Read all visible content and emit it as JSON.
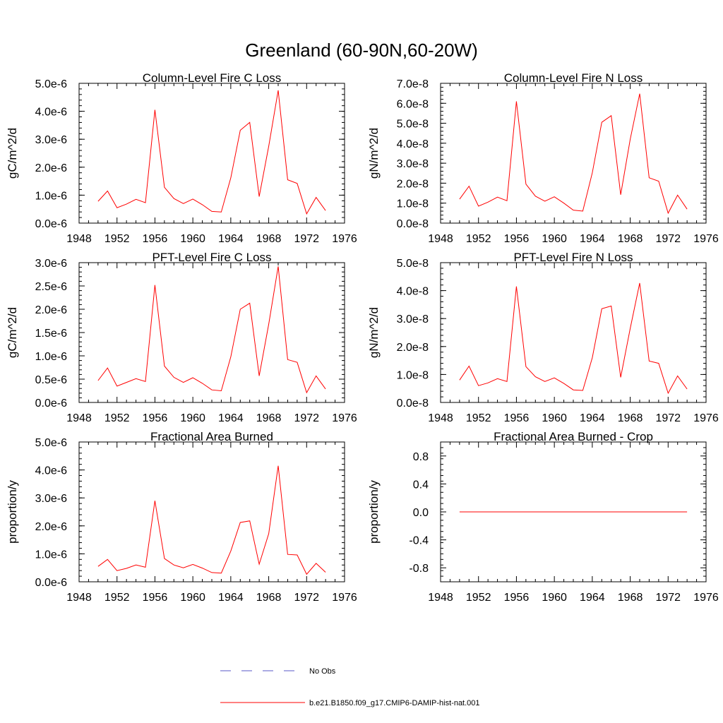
{
  "figure": {
    "title": "Greenland (60-90N,60-20W)",
    "colors": {
      "series": "#ff0000",
      "no_obs": "#5a5ac8",
      "axis": "#000000"
    }
  },
  "legend": {
    "position": "bottom-center",
    "entries": [
      {
        "label": "No Obs",
        "style": "dashed",
        "color": "#5a5ac8"
      },
      {
        "label": "b.e21.B1850.f09_g17.CMIP6-DAMIP-hist-nat.001",
        "style": "solid",
        "color": "#ff0000"
      }
    ]
  },
  "chart_data": [
    {
      "type": "line",
      "title": "Column-Level Fire C Loss",
      "ylabel": "gC/m^2/d",
      "xlabel": "",
      "xlim": [
        1948,
        1976
      ],
      "ylim": [
        0,
        5e-06
      ],
      "xticks": [
        "1948",
        "1952",
        "1956",
        "1960",
        "1964",
        "1968",
        "1972",
        "1976"
      ],
      "yticks": [
        "0.0e-6",
        "1.0e-6",
        "2.0e-6",
        "3.0e-6",
        "4.0e-6",
        "5.0e-6"
      ],
      "x": [
        1950,
        1951,
        1952,
        1953,
        1954,
        1955,
        1956,
        1957,
        1958,
        1959,
        1960,
        1961,
        1962,
        1963,
        1964,
        1965,
        1966,
        1967,
        1968,
        1969,
        1970,
        1971,
        1972,
        1973,
        1974
      ],
      "series": [
        {
          "name": "b.e21.B1850.f09_g17.CMIP6-DAMIP-hist-nat.001",
          "values": [
            7.8e-07,
            1.15e-06,
            5.5e-07,
            6.8e-07,
            8.5e-07,
            7.3e-07,
            4.05e-06,
            1.28e-06,
            8.8e-07,
            7e-07,
            8.6e-07,
            6.6e-07,
            4.2e-07,
            4e-07,
            1.62e-06,
            3.32e-06,
            3.6e-06,
            9.5e-07,
            2.75e-06,
            4.75e-06,
            1.55e-06,
            1.42e-06,
            3.3e-07,
            9.2e-07,
            4.5e-07
          ]
        }
      ]
    },
    {
      "type": "line",
      "title": "Column-Level Fire N Loss",
      "ylabel": "gN/m^2/d",
      "xlabel": "",
      "xlim": [
        1948,
        1976
      ],
      "ylim": [
        0,
        7e-08
      ],
      "xticks": [
        "1948",
        "1952",
        "1956",
        "1960",
        "1964",
        "1968",
        "1972",
        "1976"
      ],
      "yticks": [
        "0.0e-8",
        "1.0e-8",
        "2.0e-8",
        "3.0e-8",
        "4.0e-8",
        "5.0e-8",
        "6.0e-8",
        "7.0e-8"
      ],
      "x": [
        1950,
        1951,
        1952,
        1953,
        1954,
        1955,
        1956,
        1957,
        1958,
        1959,
        1960,
        1961,
        1962,
        1963,
        1964,
        1965,
        1966,
        1967,
        1968,
        1969,
        1970,
        1971,
        1972,
        1973,
        1974
      ],
      "series": [
        {
          "name": "b.e21.B1850.f09_g17.CMIP6-DAMIP-hist-nat.001",
          "values": [
            1.2e-08,
            1.85e-08,
            8.5e-09,
            1.05e-08,
            1.3e-08,
            1.12e-08,
            6.1e-08,
            1.95e-08,
            1.35e-08,
            1.1e-08,
            1.32e-08,
            1e-08,
            6.5e-09,
            6e-09,
            2.52e-08,
            5.05e-08,
            5.38e-08,
            1.42e-08,
            4.2e-08,
            6.48e-08,
            2.27e-08,
            2.1e-08,
            5e-09,
            1.4e-08,
            7e-09
          ]
        }
      ]
    },
    {
      "type": "line",
      "title": "PFT-Level Fire C Loss",
      "ylabel": "gC/m^2/d",
      "xlabel": "",
      "xlim": [
        1948,
        1976
      ],
      "ylim": [
        0,
        3e-06
      ],
      "xticks": [
        "1948",
        "1952",
        "1956",
        "1960",
        "1964",
        "1968",
        "1972",
        "1976"
      ],
      "yticks": [
        "0.0e-6",
        "0.5e-6",
        "1.0e-6",
        "1.5e-6",
        "2.0e-6",
        "2.5e-6",
        "3.0e-6"
      ],
      "x": [
        1950,
        1951,
        1952,
        1953,
        1954,
        1955,
        1956,
        1957,
        1958,
        1959,
        1960,
        1961,
        1962,
        1963,
        1964,
        1965,
        1966,
        1967,
        1968,
        1969,
        1970,
        1971,
        1972,
        1973,
        1974
      ],
      "series": [
        {
          "name": "b.e21.B1850.f09_g17.CMIP6-DAMIP-hist-nat.001",
          "values": [
            4.7e-07,
            7.4e-07,
            3.5e-07,
            4.3e-07,
            5.1e-07,
            4.5e-07,
            2.52e-06,
            7.8e-07,
            5.4e-07,
            4.3e-07,
            5.3e-07,
            4.1e-07,
            2.7e-07,
            2.5e-07,
            9.8e-07,
            2e-06,
            2.13e-06,
            5.7e-07,
            1.68e-06,
            2.92e-06,
            9.2e-07,
            8.6e-07,
            2.1e-07,
            5.7e-07,
            2.9e-07
          ]
        }
      ]
    },
    {
      "type": "line",
      "title": "PFT-Level Fire N Loss",
      "ylabel": "gN/m^2/d",
      "xlabel": "",
      "xlim": [
        1948,
        1976
      ],
      "ylim": [
        0,
        5e-08
      ],
      "xticks": [
        "1948",
        "1952",
        "1956",
        "1960",
        "1964",
        "1968",
        "1972",
        "1976"
      ],
      "yticks": [
        "0.0e-8",
        "1.0e-8",
        "2.0e-8",
        "3.0e-8",
        "4.0e-8",
        "5.0e-8"
      ],
      "x": [
        1950,
        1951,
        1952,
        1953,
        1954,
        1955,
        1956,
        1957,
        1958,
        1959,
        1960,
        1961,
        1962,
        1963,
        1964,
        1965,
        1966,
        1967,
        1968,
        1969,
        1970,
        1971,
        1972,
        1973,
        1974
      ],
      "series": [
        {
          "name": "b.e21.B1850.f09_g17.CMIP6-DAMIP-hist-nat.001",
          "values": [
            8e-09,
            1.3e-08,
            6e-09,
            7e-09,
            8.5e-09,
            7.5e-09,
            4.15e-08,
            1.28e-08,
            9.2e-09,
            7.5e-09,
            8.8e-09,
            6.8e-09,
            4.5e-09,
            4.3e-09,
            1.6e-08,
            3.35e-08,
            3.45e-08,
            9e-09,
            2.65e-08,
            4.27e-08,
            1.48e-08,
            1.4e-08,
            3.3e-09,
            9.5e-09,
            4.8e-09
          ]
        }
      ]
    },
    {
      "type": "line",
      "title": "Fractional Area Burned",
      "ylabel": "proportion/y",
      "xlabel": "",
      "xlim": [
        1948,
        1976
      ],
      "ylim": [
        0,
        5e-06
      ],
      "xticks": [
        "1948",
        "1952",
        "1956",
        "1960",
        "1964",
        "1968",
        "1972",
        "1976"
      ],
      "yticks": [
        "0.0e-6",
        "1.0e-6",
        "2.0e-6",
        "3.0e-6",
        "4.0e-6",
        "5.0e-6"
      ],
      "x": [
        1950,
        1951,
        1952,
        1953,
        1954,
        1955,
        1956,
        1957,
        1958,
        1959,
        1960,
        1961,
        1962,
        1963,
        1964,
        1965,
        1966,
        1967,
        1968,
        1969,
        1970,
        1971,
        1972,
        1973,
        1974
      ],
      "series": [
        {
          "name": "b.e21.B1850.f09_g17.CMIP6-DAMIP-hist-nat.001",
          "values": [
            5.5e-07,
            8e-07,
            4e-07,
            4.8e-07,
            6e-07,
            5.2e-07,
            2.9e-06,
            8.3e-07,
            6e-07,
            5e-07,
            6.2e-07,
            4.9e-07,
            3.3e-07,
            3.1e-07,
            1.1e-06,
            2.12e-06,
            2.18e-06,
            6.3e-07,
            1.72e-06,
            4.15e-06,
            9.8e-07,
            9.6e-07,
            2.7e-07,
            6.6e-07,
            3.4e-07
          ]
        }
      ]
    },
    {
      "type": "line",
      "title": "Fractional Area Burned - Crop",
      "ylabel": "proportion/y",
      "xlabel": "",
      "xlim": [
        1948,
        1976
      ],
      "ylim": [
        -1.0,
        1.0
      ],
      "xticks": [
        "1948",
        "1952",
        "1956",
        "1960",
        "1964",
        "1968",
        "1972",
        "1976"
      ],
      "yticks": [
        "-0.8",
        "-0.4",
        "0.0",
        "0.4",
        "0.8"
      ],
      "x": [
        1950,
        1951,
        1952,
        1953,
        1954,
        1955,
        1956,
        1957,
        1958,
        1959,
        1960,
        1961,
        1962,
        1963,
        1964,
        1965,
        1966,
        1967,
        1968,
        1969,
        1970,
        1971,
        1972,
        1973,
        1974
      ],
      "series": [
        {
          "name": "b.e21.B1850.f09_g17.CMIP6-DAMIP-hist-nat.001",
          "values": [
            0,
            0,
            0,
            0,
            0,
            0,
            0,
            0,
            0,
            0,
            0,
            0,
            0,
            0,
            0,
            0,
            0,
            0,
            0,
            0,
            0,
            0,
            0,
            0,
            0
          ]
        }
      ]
    }
  ]
}
